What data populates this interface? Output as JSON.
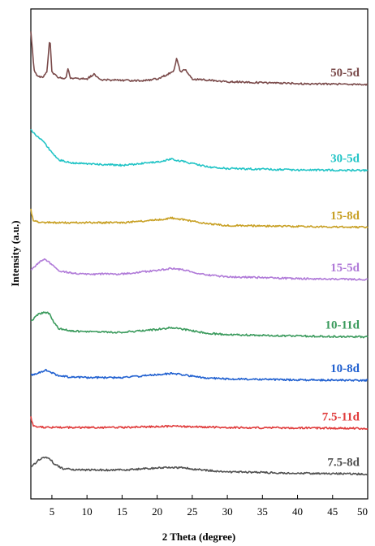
{
  "chart_data": {
    "type": "line",
    "xlabel": "2 Theta (degree)",
    "ylabel": "Intensity (a.u.)",
    "xlim": [
      2,
      50
    ],
    "x_ticks": [
      5,
      10,
      15,
      20,
      25,
      30,
      35,
      40,
      45,
      50
    ],
    "y_ticks": "none",
    "grid": false,
    "legend": "labels beside each curve at right",
    "series": [
      {
        "name": "50-5d",
        "color": "#7a4a4a",
        "points": [
          [
            2,
            8.4
          ],
          [
            2.5,
            7.55
          ],
          [
            3,
            7.45
          ],
          [
            3.8,
            7.45
          ],
          [
            4.3,
            7.55
          ],
          [
            4.7,
            8.3
          ],
          [
            5.0,
            7.55
          ],
          [
            6,
            7.42
          ],
          [
            7,
            7.42
          ],
          [
            7.3,
            7.65
          ],
          [
            7.6,
            7.42
          ],
          [
            10,
            7.4
          ],
          [
            11,
            7.5
          ],
          [
            12,
            7.38
          ],
          [
            15,
            7.37
          ],
          [
            18,
            7.36
          ],
          [
            20,
            7.4
          ],
          [
            21.5,
            7.5
          ],
          [
            22.3,
            7.55
          ],
          [
            22.8,
            7.85
          ],
          [
            23.3,
            7.55
          ],
          [
            24,
            7.6
          ],
          [
            25,
            7.4
          ],
          [
            30,
            7.34
          ],
          [
            40,
            7.3
          ],
          [
            50,
            7.28
          ]
        ]
      },
      {
        "name": "30-5d",
        "color": "#22c4c6",
        "points": [
          [
            2,
            6.3
          ],
          [
            3,
            6.15
          ],
          [
            4,
            6.02
          ],
          [
            5,
            5.82
          ],
          [
            6,
            5.66
          ],
          [
            8,
            5.6
          ],
          [
            10,
            5.58
          ],
          [
            15,
            5.55
          ],
          [
            20,
            5.62
          ],
          [
            22,
            5.68
          ],
          [
            24,
            5.62
          ],
          [
            27,
            5.52
          ],
          [
            30,
            5.48
          ],
          [
            40,
            5.45
          ],
          [
            50,
            5.44
          ]
        ]
      },
      {
        "name": "15-8d",
        "color": "#c8a024",
        "points": [
          [
            2,
            4.6
          ],
          [
            2.3,
            4.38
          ],
          [
            3,
            4.33
          ],
          [
            5,
            4.32
          ],
          [
            10,
            4.32
          ],
          [
            15,
            4.32
          ],
          [
            20,
            4.38
          ],
          [
            22,
            4.42
          ],
          [
            24,
            4.38
          ],
          [
            27,
            4.3
          ],
          [
            30,
            4.26
          ],
          [
            40,
            4.24
          ],
          [
            50,
            4.22
          ]
        ]
      },
      {
        "name": "15-5d",
        "color": "#b07ad8",
        "points": [
          [
            2,
            3.3
          ],
          [
            3,
            3.45
          ],
          [
            4,
            3.55
          ],
          [
            5,
            3.42
          ],
          [
            6,
            3.28
          ],
          [
            8,
            3.24
          ],
          [
            10,
            3.22
          ],
          [
            15,
            3.22
          ],
          [
            20,
            3.3
          ],
          [
            22,
            3.34
          ],
          [
            24,
            3.3
          ],
          [
            27,
            3.2
          ],
          [
            30,
            3.16
          ],
          [
            40,
            3.12
          ],
          [
            50,
            3.1
          ]
        ]
      },
      {
        "name": "10-11d",
        "color": "#3a9a5c",
        "points": [
          [
            2,
            2.2
          ],
          [
            3,
            2.35
          ],
          [
            4,
            2.4
          ],
          [
            4.6,
            2.38
          ],
          [
            5.2,
            2.2
          ],
          [
            6,
            2.05
          ],
          [
            8,
            2.0
          ],
          [
            10,
            1.98
          ],
          [
            15,
            1.97
          ],
          [
            20,
            2.03
          ],
          [
            22,
            2.07
          ],
          [
            24,
            2.03
          ],
          [
            27,
            1.95
          ],
          [
            30,
            1.92
          ],
          [
            40,
            1.89
          ],
          [
            50,
            1.87
          ]
        ]
      },
      {
        "name": "10-8d",
        "color": "#2060d0",
        "points": [
          [
            2,
            1.05
          ],
          [
            3,
            1.1
          ],
          [
            4.2,
            1.16
          ],
          [
            5,
            1.1
          ],
          [
            6,
            1.03
          ],
          [
            8,
            1.01
          ],
          [
            10,
            1.0
          ],
          [
            15,
            1.0
          ],
          [
            20,
            1.06
          ],
          [
            22,
            1.09
          ],
          [
            24,
            1.05
          ],
          [
            27,
            0.99
          ],
          [
            30,
            0.97
          ],
          [
            40,
            0.95
          ],
          [
            50,
            0.94
          ]
        ]
      },
      {
        "name": "7.5-11d",
        "color": "#e03c3c",
        "points": [
          [
            2,
            0.15
          ],
          [
            2.3,
            -0.02
          ],
          [
            3,
            -0.06
          ],
          [
            5,
            -0.07
          ],
          [
            10,
            -0.07
          ],
          [
            15,
            -0.07
          ],
          [
            20,
            -0.05
          ],
          [
            22,
            -0.04
          ],
          [
            24,
            -0.05
          ],
          [
            30,
            -0.07
          ],
          [
            40,
            -0.08
          ],
          [
            50,
            -0.09
          ]
        ]
      },
      {
        "name": "7.5-8d",
        "color": "#505050",
        "points": [
          [
            2,
            -0.92
          ],
          [
            3,
            -0.78
          ],
          [
            4,
            -0.7
          ],
          [
            4.6,
            -0.72
          ],
          [
            5.4,
            -0.86
          ],
          [
            6.5,
            -0.95
          ],
          [
            8,
            -0.97
          ],
          [
            10,
            -0.98
          ],
          [
            15,
            -0.98
          ],
          [
            20,
            -0.94
          ],
          [
            22,
            -0.92
          ],
          [
            24,
            -0.94
          ],
          [
            27,
            -0.99
          ],
          [
            30,
            -1.02
          ],
          [
            40,
            -1.05
          ],
          [
            50,
            -1.07
          ]
        ]
      }
    ]
  }
}
